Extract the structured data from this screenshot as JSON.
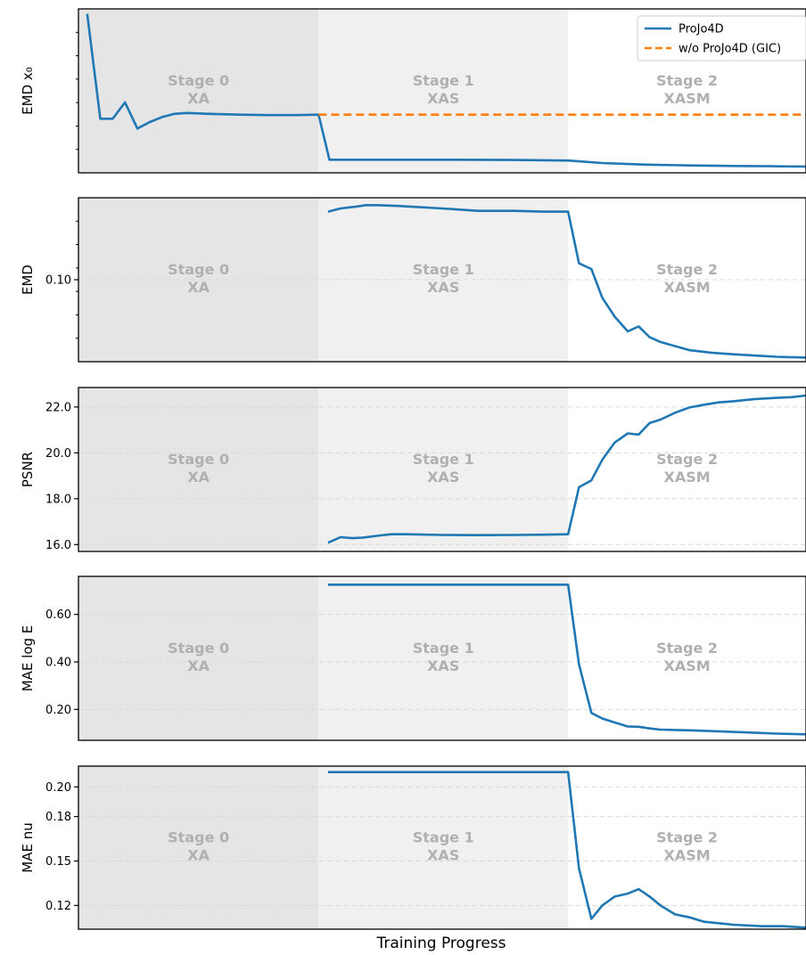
{
  "chart_data": {
    "type": "line",
    "xlabel": "Training Progress",
    "stages": [
      {
        "name": "Stage 0",
        "code": "XA",
        "range": [
          0,
          0.33
        ],
        "color": "#e5e5e5"
      },
      {
        "name": "Stage 1",
        "code": "XAS",
        "range": [
          0.33,
          0.673
        ],
        "color": "#f0f0f0"
      },
      {
        "name": "Stage 2",
        "code": "XASM",
        "range": [
          0.673,
          1.0
        ],
        "color": "#ffffff"
      }
    ],
    "legend": {
      "position": "top-right",
      "entries": [
        {
          "label": "ProJo4D",
          "color": "#1f77b4",
          "dash": false
        },
        {
          "label": "w/o ProJo4D (GIC)",
          "color": "#ff7f0e",
          "dash": true
        }
      ]
    },
    "panels": [
      {
        "ylabel": "EMD x₀",
        "ylim": [
          0,
          1
        ],
        "yticks": [],
        "ytick_labels": [],
        "minor_ticks": true,
        "grid": false,
        "series": [
          {
            "name": "ProJo4D",
            "color": "#1f77b4",
            "dash": false,
            "x": [
              0.012,
              0.03,
              0.047,
              0.064,
              0.081,
              0.098,
              0.115,
              0.132,
              0.149,
              0.18,
              0.22,
              0.26,
              0.3,
              0.33,
              0.345,
              0.4,
              0.5,
              0.6,
              0.673,
              0.72,
              0.78,
              0.84,
              0.9,
              0.95,
              1.0
            ],
            "y": [
              0.97,
              0.33,
              0.33,
              0.43,
              0.27,
              0.31,
              0.34,
              0.36,
              0.365,
              0.36,
              0.355,
              0.352,
              0.352,
              0.355,
              0.08,
              0.08,
              0.08,
              0.078,
              0.075,
              0.06,
              0.05,
              0.045,
              0.042,
              0.04,
              0.038
            ]
          },
          {
            "name": "w/o ProJo4D (GIC)",
            "color": "#ff7f0e",
            "dash": true,
            "x": [
              0.33,
              1.0
            ],
            "y": [
              0.355,
              0.355
            ]
          }
        ]
      },
      {
        "ylabel": "EMD",
        "ylim": [
          0.0,
          0.2
        ],
        "yticks": [
          0.1
        ],
        "ytick_labels": [
          "0.10"
        ],
        "minor_ticks": true,
        "grid": true,
        "series": [
          {
            "name": "ProJo4D",
            "color": "#1f77b4",
            "dash": false,
            "x": [
              0.343,
              0.36,
              0.38,
              0.395,
              0.41,
              0.44,
              0.5,
              0.55,
              0.6,
              0.64,
              0.673,
              0.688,
              0.705,
              0.72,
              0.737,
              0.755,
              0.77,
              0.785,
              0.8,
              0.84,
              0.87,
              0.9,
              0.94,
              0.96,
              1.0
            ],
            "y": [
              0.183,
              0.187,
              0.189,
              0.191,
              0.191,
              0.19,
              0.187,
              0.184,
              0.184,
              0.183,
              0.183,
              0.12,
              0.113,
              0.078,
              0.055,
              0.037,
              0.043,
              0.03,
              0.024,
              0.014,
              0.011,
              0.009,
              0.007,
              0.006,
              0.005
            ]
          }
        ]
      },
      {
        "ylabel": "PSNR",
        "ylim": [
          15.7,
          22.85
        ],
        "yticks": [
          16.0,
          18.0,
          20.0,
          22.0
        ],
        "ytick_labels": [
          "16.0",
          "18.0",
          "20.0",
          "22.0"
        ],
        "minor_ticks": false,
        "grid": true,
        "series": [
          {
            "name": "ProJo4D",
            "color": "#1f77b4",
            "dash": false,
            "x": [
              0.343,
              0.36,
              0.376,
              0.39,
              0.41,
              0.43,
              0.45,
              0.5,
              0.55,
              0.6,
              0.64,
              0.673,
              0.688,
              0.705,
              0.72,
              0.737,
              0.755,
              0.77,
              0.785,
              0.8,
              0.82,
              0.84,
              0.86,
              0.88,
              0.9,
              0.93,
              0.96,
              0.98,
              1.0
            ],
            "y": [
              16.08,
              16.32,
              16.28,
              16.3,
              16.38,
              16.45,
              16.45,
              16.42,
              16.41,
              16.42,
              16.43,
              16.45,
              18.5,
              18.8,
              19.7,
              20.45,
              20.85,
              20.8,
              21.3,
              21.45,
              21.75,
              21.98,
              22.1,
              22.2,
              22.25,
              22.35,
              22.4,
              22.43,
              22.5
            ]
          }
        ]
      },
      {
        "ylabel": "MAE log E",
        "ylim": [
          0.07,
          0.76
        ],
        "yticks": [
          0.2,
          0.4,
          0.6
        ],
        "ytick_labels": [
          "0.20",
          "0.40",
          "0.60"
        ],
        "minor_ticks": false,
        "grid": true,
        "series": [
          {
            "name": "ProJo4D",
            "color": "#1f77b4",
            "dash": false,
            "x": [
              0.343,
              0.5,
              0.6,
              0.673,
              0.688,
              0.705,
              0.72,
              0.737,
              0.755,
              0.77,
              0.785,
              0.8,
              0.84,
              0.88,
              0.92,
              0.96,
              1.0
            ],
            "y": [
              0.725,
              0.725,
              0.725,
              0.725,
              0.39,
              0.185,
              0.162,
              0.145,
              0.128,
              0.127,
              0.12,
              0.115,
              0.112,
              0.108,
              0.103,
              0.098,
              0.095
            ]
          }
        ]
      },
      {
        "ylabel": "MAE nu",
        "ylim": [
          0.104,
          0.214
        ],
        "yticks": [
          0.12,
          0.15,
          0.18,
          0.2
        ],
        "ytick_labels": [
          "0.12",
          "0.15",
          "0.18",
          "0.20"
        ],
        "minor_ticks": false,
        "grid": true,
        "series": [
          {
            "name": "ProJo4D",
            "color": "#1f77b4",
            "dash": false,
            "x": [
              0.343,
              0.5,
              0.6,
              0.673,
              0.688,
              0.705,
              0.72,
              0.737,
              0.755,
              0.77,
              0.785,
              0.8,
              0.82,
              0.84,
              0.86,
              0.88,
              0.9,
              0.94,
              0.97,
              1.0
            ],
            "y": [
              0.21,
              0.21,
              0.21,
              0.21,
              0.145,
              0.111,
              0.12,
              0.126,
              0.128,
              0.131,
              0.126,
              0.12,
              0.114,
              0.112,
              0.109,
              0.108,
              0.107,
              0.106,
              0.106,
              0.105
            ]
          }
        ]
      }
    ]
  }
}
